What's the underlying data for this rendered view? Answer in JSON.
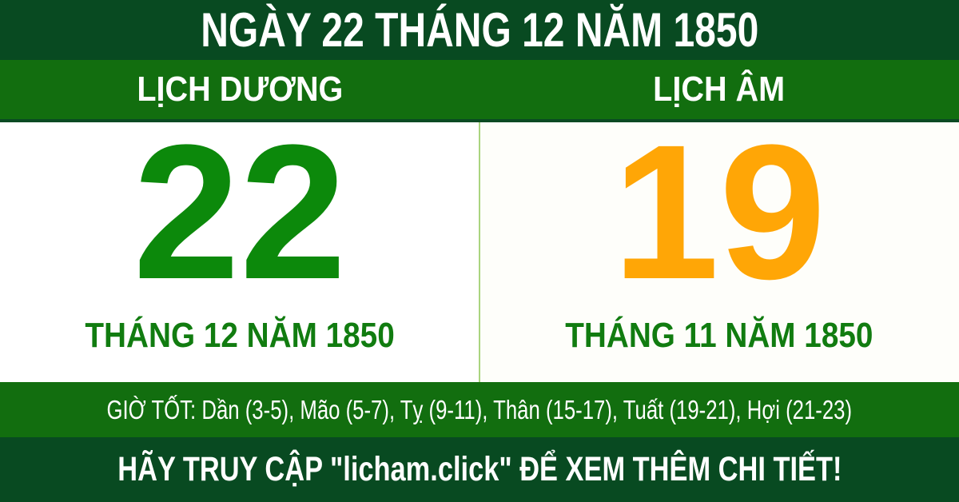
{
  "header": {
    "title": "NGÀY 22 THÁNG 12 NĂM 1850"
  },
  "calendar": {
    "solar": {
      "label": "LỊCH DƯƠNG",
      "day": "22",
      "month_year": "THÁNG 12 NĂM 1850"
    },
    "lunar": {
      "label": "LỊCH ÂM",
      "day": "19",
      "month_year": "THÁNG 11 NĂM 1850"
    }
  },
  "good_hours": {
    "text": "GIỜ TỐT: Dần (3-5), Mão (5-7), Tỵ (9-11), Thân (15-17), Tuất (19-21), Hợi (21-23)"
  },
  "footer": {
    "cta": "HÃY TRUY CẬP \"licham.click\" ĐỂ XEM THÊM CHI TIẾT!"
  },
  "colors": {
    "dark_green_bar": "#084a21",
    "green_bar": "#126e0f",
    "solar_day_green": "#0c890b",
    "month_text_green": "#117c10",
    "lunar_day_orange": "#ffa606",
    "divider_light_green": "#aad47f",
    "text_white": "#ffffff"
  }
}
